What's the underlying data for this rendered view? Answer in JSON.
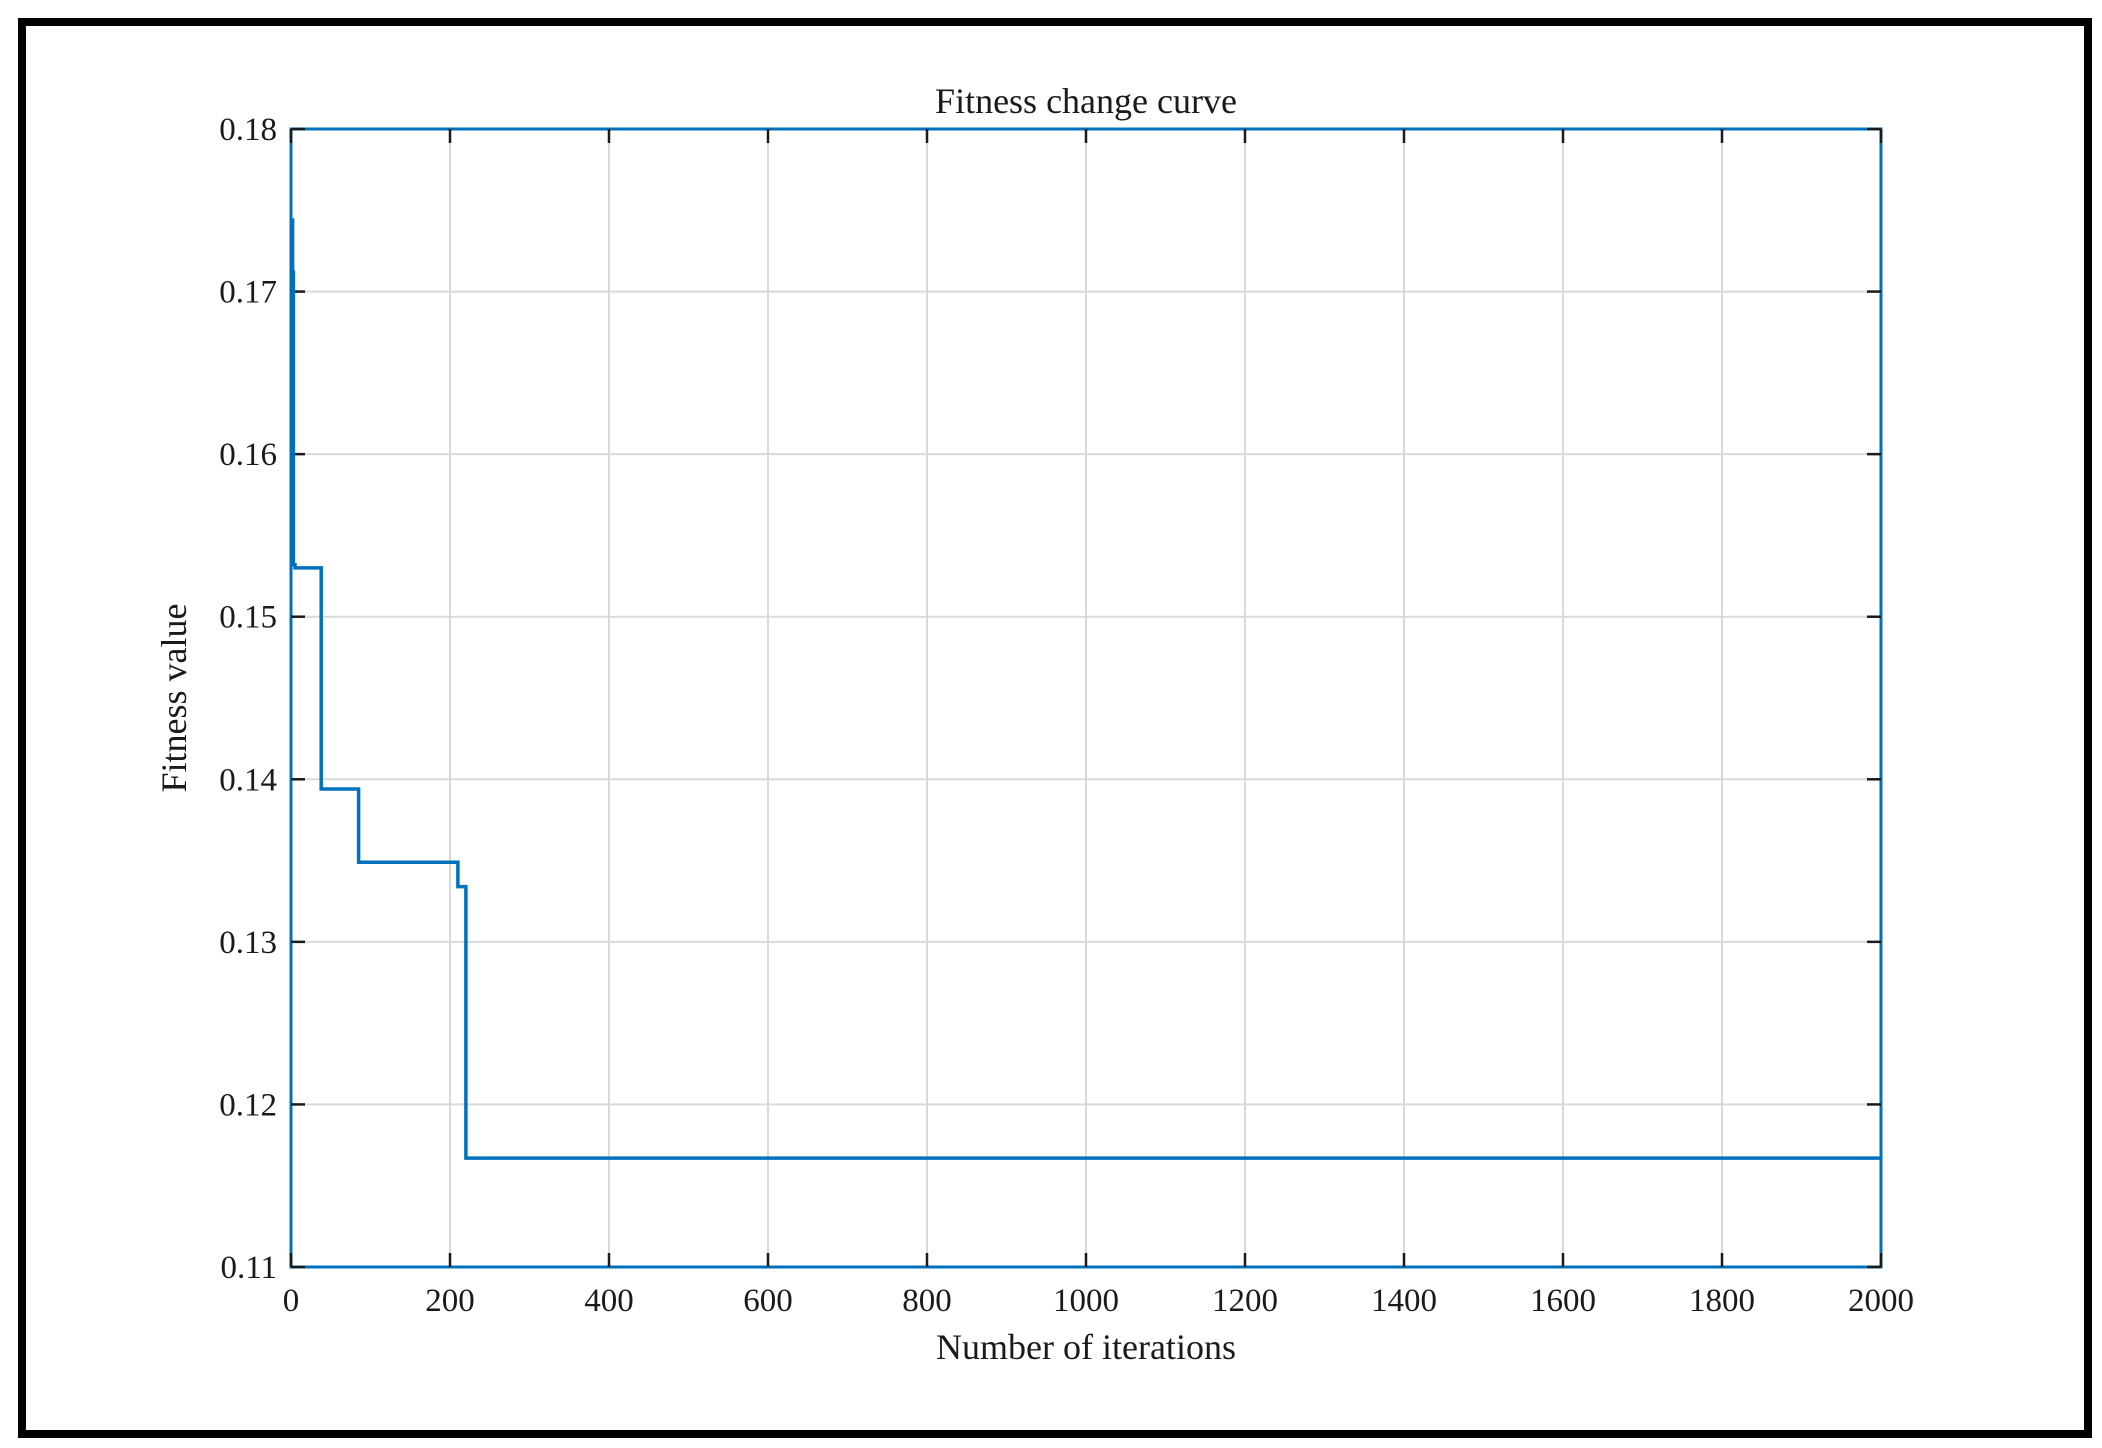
{
  "chart_data": {
    "type": "line",
    "title": "Fitness change curve",
    "xlabel": "Number of iterations",
    "ylabel": "Fitness value",
    "xlim": [
      0,
      2000
    ],
    "ylim": [
      0.11,
      0.18
    ],
    "xticks": [
      0,
      200,
      400,
      600,
      800,
      1000,
      1200,
      1400,
      1600,
      1800,
      2000
    ],
    "yticks": [
      0.11,
      0.12,
      0.13,
      0.14,
      0.15,
      0.16,
      0.17,
      0.18
    ],
    "xtick_labels": [
      "0",
      "200",
      "400",
      "600",
      "800",
      "1000",
      "1200",
      "1400",
      "1600",
      "1800",
      "2000"
    ],
    "ytick_labels": [
      "0.11",
      "0.12",
      "0.13",
      "0.14",
      "0.15",
      "0.16",
      "0.17",
      "0.18"
    ],
    "grid": true,
    "line_color": "#0072BD",
    "axis_color": "#0072BD",
    "series": [
      {
        "x": [
          1,
          2,
          2,
          3,
          3,
          5,
          5,
          38,
          38,
          85,
          85,
          210,
          210,
          220,
          220,
          2000
        ],
        "y": [
          0.1744,
          0.1744,
          0.1712,
          0.1712,
          0.1532,
          0.1532,
          0.153,
          0.153,
          0.1394,
          0.1394,
          0.1349,
          0.1349,
          0.1334,
          0.1334,
          0.1167,
          0.1167
        ]
      }
    ]
  }
}
